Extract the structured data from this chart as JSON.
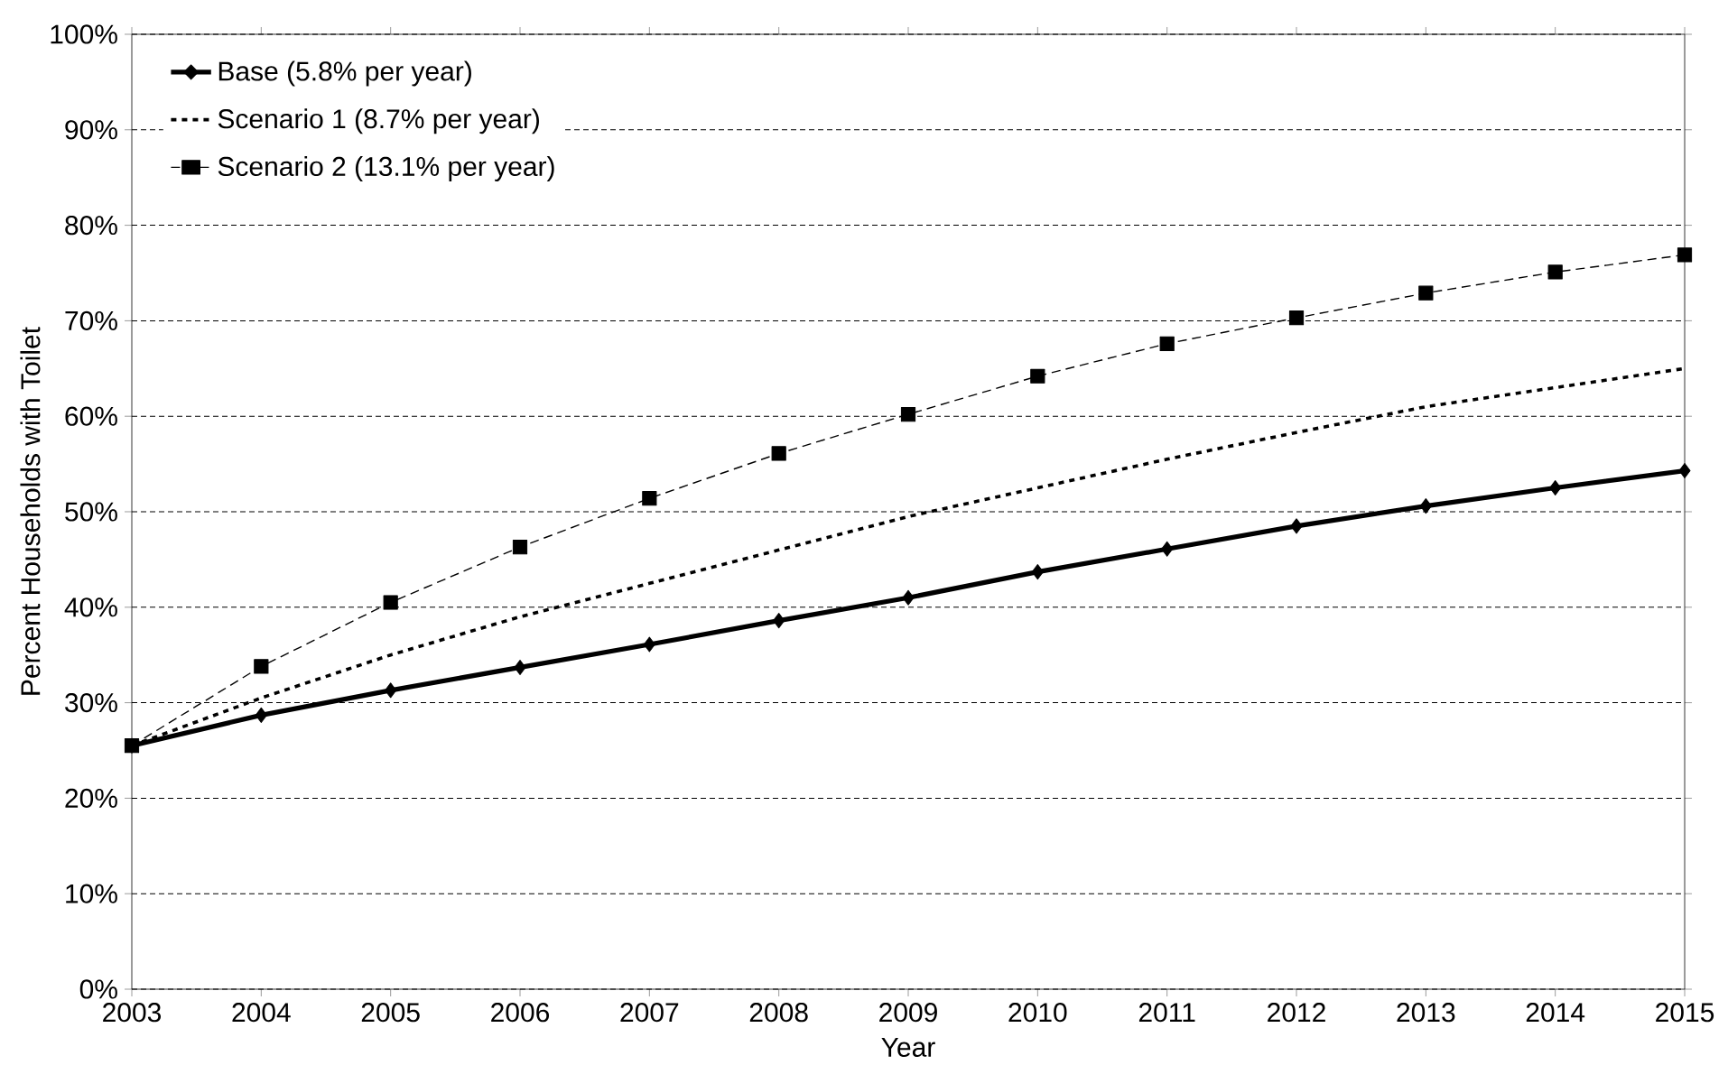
{
  "chart_data": {
    "type": "line",
    "xlabel": "Year",
    "ylabel": "Percent Households with Toilet",
    "x": [
      2003,
      2004,
      2005,
      2006,
      2007,
      2008,
      2009,
      2010,
      2011,
      2012,
      2013,
      2014,
      2015
    ],
    "series": [
      {
        "name": "Base (5.8% per year)",
        "color": "#000000",
        "marker": "diamond",
        "line_style": "solid",
        "values": [
          25.5,
          28.7,
          31.3,
          33.7,
          36.1,
          38.6,
          41.0,
          43.7,
          46.1,
          48.5,
          50.6,
          52.5,
          54.3
        ]
      },
      {
        "name": "Scenario 1 (8.7% per year)",
        "color": "#000000",
        "marker": "none",
        "line_style": "dotted",
        "values": [
          25.5,
          30.5,
          35.0,
          39.0,
          42.5,
          46.0,
          49.5,
          52.5,
          55.5,
          58.3,
          61.0,
          63.0,
          65.0
        ]
      },
      {
        "name": "Scenario 2 (13.1% per year)",
        "color": "#000000",
        "marker": "square",
        "line_style": "dashed",
        "values": [
          25.5,
          33.8,
          40.5,
          46.3,
          51.4,
          56.1,
          60.2,
          64.2,
          67.6,
          70.3,
          72.9,
          75.1,
          76.9
        ]
      }
    ],
    "xlim": [
      2003,
      2015
    ],
    "xticks": [
      2003,
      2004,
      2005,
      2006,
      2007,
      2008,
      2009,
      2010,
      2011,
      2012,
      2013,
      2014,
      2015
    ],
    "ylim": [
      0,
      100
    ],
    "yticks": [
      {
        "value": 0,
        "label": "0%"
      },
      {
        "value": 10,
        "label": "10%"
      },
      {
        "value": 20,
        "label": "20%"
      },
      {
        "value": 30,
        "label": "30%"
      },
      {
        "value": 40,
        "label": "40%"
      },
      {
        "value": 50,
        "label": "50%"
      },
      {
        "value": 60,
        "label": "60%"
      },
      {
        "value": 70,
        "label": "70%"
      },
      {
        "value": 80,
        "label": "80%"
      },
      {
        "value": 90,
        "label": "90%"
      },
      {
        "value": 100,
        "label": "100%"
      }
    ],
    "grid": "y",
    "legend": "top left"
  }
}
